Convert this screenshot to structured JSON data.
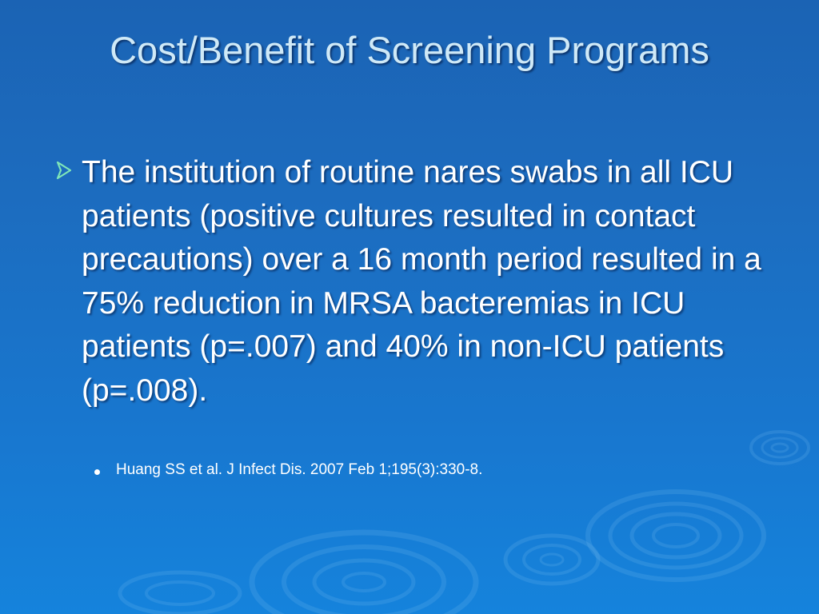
{
  "slide": {
    "title": "Cost/Benefit of Screening Programs",
    "bullet_icon": "arrow-bullet-icon",
    "bullet_text": "The institution of routine nares swabs in all ICU patients (positive cultures resulted in contact precautions) over a 16 month period resulted in a 75% reduction in MRSA bacteremias in ICU patients (p=.007) and 40% in non-ICU patients (p=.008).",
    "sub_bullet_text": "Huang SS et al. J Infect Dis. 2007 Feb 1;195(3):330-8."
  },
  "colors": {
    "background_top": "#1b63b4",
    "background_bottom": "#1583dc",
    "title_color": "#cfe9f7",
    "bullet_arrow": "#7fe6b8",
    "text": "#ffffff"
  }
}
